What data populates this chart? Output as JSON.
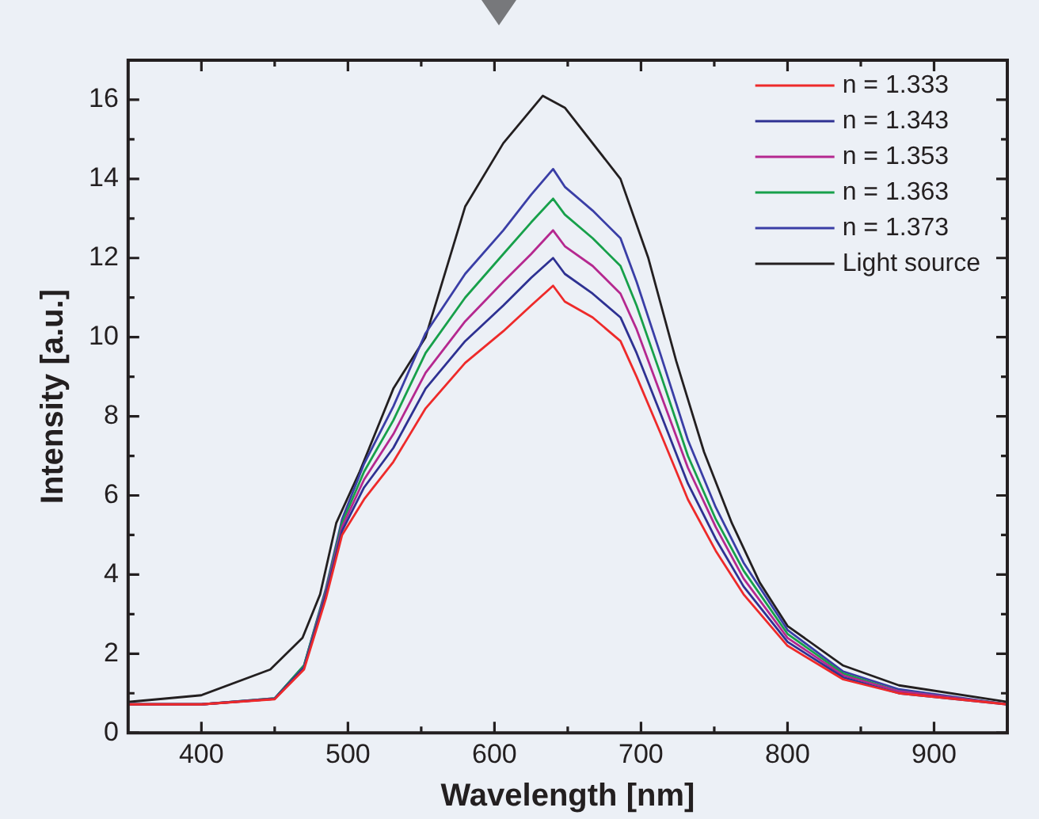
{
  "chart_data": {
    "type": "line",
    "xlabel": "Wavelength [nm]",
    "ylabel": "Intensity [a.u.]",
    "xlim": [
      350,
      950
    ],
    "xticks": [
      400,
      500,
      600,
      700,
      800,
      900
    ],
    "ylim": [
      0,
      17
    ],
    "yticks": [
      0,
      2,
      4,
      6,
      8,
      10,
      12,
      14,
      16
    ],
    "grid": false,
    "legend": "top right",
    "marker": "none",
    "line_style": "solid",
    "series": [
      {
        "name": "n = 1.333",
        "color": "#ee2a2a",
        "x": [
          350,
          400,
          450,
          470,
          485,
          496,
          511,
          531,
          553,
          580,
          606,
          625,
          640,
          648,
          667,
          686,
          697,
          713,
          732,
          751,
          770,
          800,
          838,
          876,
          950
        ],
        "values": [
          0.72,
          0.72,
          0.85,
          1.6,
          3.4,
          5.0,
          5.9,
          6.85,
          8.2,
          9.35,
          10.15,
          10.8,
          11.3,
          10.9,
          10.5,
          9.9,
          9.0,
          7.6,
          5.9,
          4.6,
          3.5,
          2.2,
          1.35,
          1.0,
          0.72
        ]
      },
      {
        "name": "n = 1.343",
        "color": "#2e3192",
        "x": [
          350,
          400,
          450,
          470,
          485,
          496,
          511,
          531,
          553,
          580,
          606,
          625,
          640,
          648,
          667,
          686,
          697,
          713,
          732,
          751,
          770,
          800,
          838,
          876,
          950
        ],
        "values": [
          0.72,
          0.72,
          0.86,
          1.65,
          3.5,
          5.1,
          6.2,
          7.2,
          8.7,
          9.9,
          10.8,
          11.5,
          12.0,
          11.6,
          11.1,
          10.5,
          9.6,
          8.1,
          6.3,
          4.9,
          3.7,
          2.3,
          1.4,
          1.0,
          0.72
        ]
      },
      {
        "name": "n = 1.353",
        "color": "#b5288f",
        "x": [
          350,
          400,
          450,
          470,
          485,
          496,
          511,
          531,
          553,
          580,
          606,
          625,
          640,
          648,
          667,
          686,
          697,
          713,
          732,
          751,
          770,
          800,
          838,
          876,
          950
        ],
        "values": [
          0.72,
          0.72,
          0.86,
          1.65,
          3.55,
          5.2,
          6.4,
          7.55,
          9.1,
          10.4,
          11.4,
          12.1,
          12.7,
          12.3,
          11.8,
          11.1,
          10.2,
          8.6,
          6.7,
          5.2,
          3.9,
          2.4,
          1.45,
          1.05,
          0.72
        ]
      },
      {
        "name": "n = 1.363",
        "color": "#17a04a",
        "x": [
          350,
          400,
          450,
          470,
          485,
          496,
          511,
          531,
          553,
          580,
          606,
          625,
          640,
          648,
          667,
          686,
          697,
          713,
          732,
          751,
          770,
          800,
          838,
          876,
          950
        ],
        "values": [
          0.72,
          0.72,
          0.87,
          1.7,
          3.6,
          5.3,
          6.6,
          7.9,
          9.6,
          11.0,
          12.1,
          12.9,
          13.5,
          13.1,
          12.5,
          11.8,
          10.8,
          9.1,
          7.0,
          5.4,
          4.1,
          2.5,
          1.5,
          1.05,
          0.72
        ]
      },
      {
        "name": "n = 1.373",
        "color": "#3a3ea6",
        "x": [
          350,
          400,
          450,
          470,
          485,
          496,
          511,
          531,
          553,
          580,
          606,
          625,
          640,
          648,
          667,
          686,
          697,
          713,
          732,
          751,
          770,
          800,
          838,
          876,
          950
        ],
        "values": [
          0.72,
          0.72,
          0.87,
          1.7,
          3.65,
          5.4,
          6.8,
          8.25,
          10.1,
          11.6,
          12.7,
          13.6,
          14.25,
          13.8,
          13.2,
          12.5,
          11.4,
          9.6,
          7.4,
          5.7,
          4.3,
          2.6,
          1.55,
          1.1,
          0.72
        ]
      },
      {
        "name": "Light source",
        "color": "#231f20",
        "x": [
          350,
          400,
          447,
          469,
          481,
          492,
          508,
          531,
          553,
          580,
          606,
          633,
          648,
          686,
          705,
          724,
          743,
          762,
          781,
          800,
          838,
          876,
          950
        ],
        "values": [
          0.78,
          0.95,
          1.6,
          2.4,
          3.5,
          5.3,
          6.6,
          8.7,
          10.0,
          13.3,
          14.9,
          16.1,
          15.8,
          14.0,
          12.0,
          9.4,
          7.1,
          5.3,
          3.8,
          2.7,
          1.7,
          1.2,
          0.78
        ]
      }
    ]
  }
}
